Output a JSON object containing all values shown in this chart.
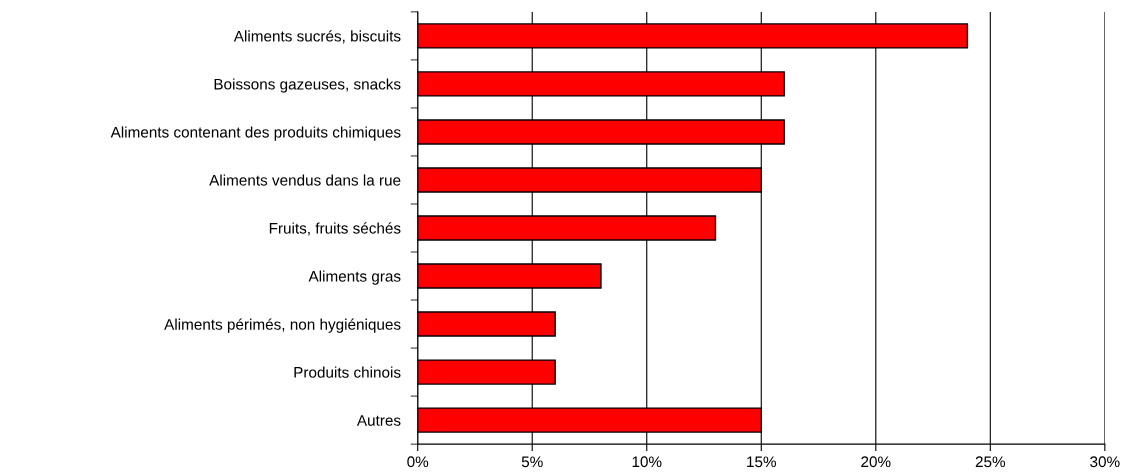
{
  "chart_data": {
    "type": "bar",
    "orientation": "horizontal",
    "categories": [
      "Aliments sucrés, biscuits",
      "Boissons gazeuses, snacks",
      "Aliments contenant des produits chimiques",
      "Aliments vendus dans la rue",
      "Fruits, fruits séchés",
      "Aliments gras",
      "Aliments périmés, non hygiéniques",
      "Produits chinois",
      "Autres"
    ],
    "values": [
      24,
      16,
      16,
      15,
      13,
      8,
      6,
      6,
      15
    ],
    "color": "#ff0000",
    "xlim": [
      0,
      30
    ],
    "xticks": [
      {
        "value": 0,
        "label": "0%"
      },
      {
        "value": 5,
        "label": "5%"
      },
      {
        "value": 10,
        "label": "10%"
      },
      {
        "value": 15,
        "label": "15%"
      },
      {
        "value": 20,
        "label": "20%"
      },
      {
        "value": 25,
        "label": "25%"
      },
      {
        "value": 30,
        "label": "30%"
      }
    ],
    "grid": "x",
    "legend": false
  }
}
